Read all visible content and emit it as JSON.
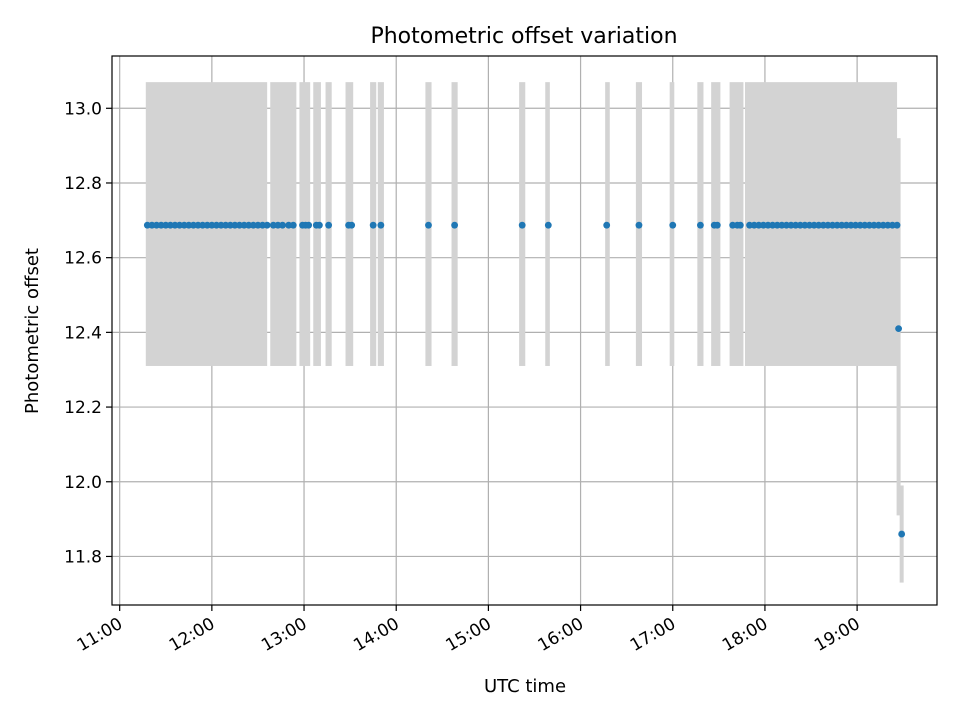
{
  "chart_data": {
    "type": "scatter",
    "title": "Photometric offset variation",
    "xlabel": "UTC time",
    "ylabel": "Photometric offset",
    "x_ticks": [
      "11:00",
      "12:00",
      "13:00",
      "14:00",
      "15:00",
      "16:00",
      "17:00",
      "18:00",
      "19:00"
    ],
    "y_ticks": [
      "11.8",
      "12.0",
      "12.2",
      "12.4",
      "12.6",
      "12.8",
      "13.0"
    ],
    "xlim": [
      "10:55",
      "19:52"
    ],
    "ylim": [
      11.67,
      13.14
    ],
    "grid": true,
    "colors": {
      "points": "#1f77b4",
      "error_bars": "#d3d3d3",
      "grid": "#b0b0b0"
    },
    "error_band": {
      "y_low": 12.31,
      "y_high": 13.07,
      "segments": [
        [
          "11:17",
          "12:36"
        ],
        [
          "12:38",
          "12:55"
        ],
        [
          "12:57",
          "13:04"
        ],
        [
          "13:06",
          "13:11"
        ],
        [
          "13:14",
          "13:18"
        ],
        [
          "13:27",
          "13:32"
        ],
        [
          "13:43",
          "13:47"
        ],
        [
          "13:48",
          "13:52"
        ],
        [
          "14:19",
          "14:23"
        ],
        [
          "14:36",
          "14:40"
        ],
        [
          "15:20",
          "15:24"
        ],
        [
          "15:37",
          "15:40"
        ],
        [
          "16:16",
          "16:19"
        ],
        [
          "16:36",
          "16:40"
        ],
        [
          "16:58",
          "17:01"
        ],
        [
          "17:16",
          "17:20"
        ],
        [
          "17:25",
          "17:31"
        ],
        [
          "17:37",
          "17:46"
        ],
        [
          "17:47",
          "19:26"
        ]
      ]
    },
    "series": [
      {
        "x": [
          "11:18",
          "11:21",
          "11:24",
          "11:27",
          "11:30",
          "11:33",
          "11:36",
          "11:39",
          "11:42",
          "11:45",
          "11:48",
          "11:51",
          "11:54",
          "11:57",
          "12:00",
          "12:03",
          "12:06",
          "12:09",
          "12:12",
          "12:15",
          "12:18",
          "12:21",
          "12:24",
          "12:27",
          "12:30",
          "12:33",
          "12:36",
          "12:40",
          "12:43",
          "12:46",
          "12:50",
          "12:53",
          "12:59",
          "13:01",
          "13:03",
          "13:08",
          "13:10",
          "13:16",
          "13:29",
          "13:31",
          "13:45",
          "13:50",
          "14:21",
          "14:38",
          "15:22",
          "15:39",
          "16:17",
          "16:38",
          "17:00",
          "17:18",
          "17:27",
          "17:29",
          "17:39",
          "17:42",
          "17:44",
          "17:50",
          "17:53",
          "17:56",
          "17:59",
          "18:02",
          "18:05",
          "18:08",
          "18:11",
          "18:14",
          "18:17",
          "18:20",
          "18:23",
          "18:26",
          "18:29",
          "18:32",
          "18:35",
          "18:38",
          "18:41",
          "18:44",
          "18:47",
          "18:50",
          "18:53",
          "18:56",
          "18:59",
          "19:02",
          "19:05",
          "19:08",
          "19:11",
          "19:14",
          "19:17",
          "19:20",
          "19:23",
          "19:26",
          "19:27",
          "19:29"
        ],
        "y": [
          12.687,
          12.687,
          12.687,
          12.687,
          12.687,
          12.687,
          12.687,
          12.687,
          12.687,
          12.687,
          12.687,
          12.687,
          12.687,
          12.687,
          12.687,
          12.687,
          12.687,
          12.687,
          12.687,
          12.687,
          12.687,
          12.687,
          12.687,
          12.687,
          12.687,
          12.687,
          12.687,
          12.687,
          12.687,
          12.687,
          12.687,
          12.687,
          12.687,
          12.687,
          12.687,
          12.687,
          12.687,
          12.687,
          12.687,
          12.687,
          12.687,
          12.687,
          12.687,
          12.687,
          12.687,
          12.687,
          12.687,
          12.687,
          12.687,
          12.687,
          12.687,
          12.687,
          12.687,
          12.687,
          12.687,
          12.687,
          12.687,
          12.687,
          12.687,
          12.687,
          12.687,
          12.687,
          12.687,
          12.687,
          12.687,
          12.687,
          12.687,
          12.687,
          12.687,
          12.687,
          12.687,
          12.687,
          12.687,
          12.687,
          12.687,
          12.687,
          12.687,
          12.687,
          12.687,
          12.687,
          12.687,
          12.687,
          12.687,
          12.687,
          12.687,
          12.687,
          12.687,
          12.687,
          12.41,
          11.86
        ],
        "err_low": [],
        "err_high": []
      }
    ],
    "outlier_error_bars": [
      {
        "x": "19:27",
        "y_low": 11.91,
        "y_high": 12.92
      },
      {
        "x": "19:29",
        "y_low": 11.73,
        "y_high": 11.99
      }
    ]
  }
}
